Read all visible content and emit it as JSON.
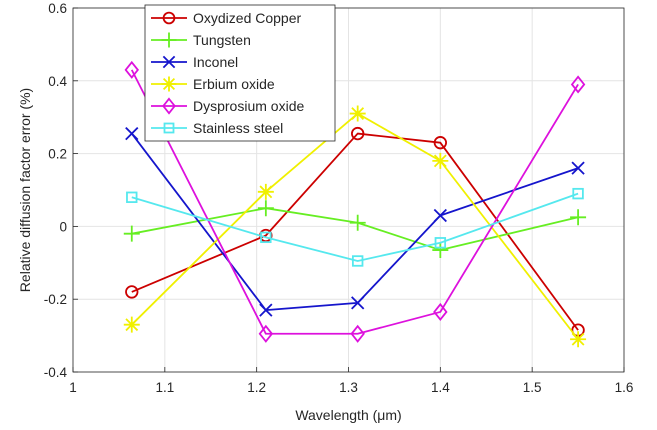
{
  "chart_data": {
    "type": "line",
    "title": "",
    "xlabel": "Wavelength (μm)",
    "ylabel": "Relative diffusion factor error (%)",
    "xlim": [
      1,
      1.6
    ],
    "ylim": [
      -0.4,
      0.6
    ],
    "xticks": [
      1,
      1.1,
      1.2,
      1.3,
      1.4,
      1.5,
      1.6
    ],
    "yticks": [
      -0.4,
      -0.2,
      0,
      0.2,
      0.4,
      0.6
    ],
    "xtick_labels": [
      "1",
      "1.1",
      "1.2",
      "1.3",
      "1.4",
      "1.5",
      "1.6"
    ],
    "ytick_labels": [
      "-0.4",
      "-0.2",
      "0",
      "0.2",
      "0.4",
      "0.6"
    ],
    "grid": true,
    "legend_position": "top-left",
    "x": [
      1.064,
      1.21,
      1.31,
      1.4,
      1.55
    ],
    "series": [
      {
        "name": "Oxydized Copper",
        "color": "#cc0000",
        "marker": "circle",
        "values": [
          -0.18,
          -0.025,
          0.255,
          0.23,
          -0.285
        ]
      },
      {
        "name": "Tungsten",
        "color": "#66ee22",
        "marker": "plus",
        "values": [
          -0.02,
          0.05,
          0.01,
          -0.065,
          0.025
        ]
      },
      {
        "name": "Inconel",
        "color": "#1515cc",
        "marker": "x",
        "values": [
          0.255,
          -0.23,
          -0.21,
          0.03,
          0.16
        ]
      },
      {
        "name": "Erbium oxide",
        "color": "#f0f000",
        "marker": "asterisk",
        "values": [
          -0.27,
          0.095,
          0.31,
          0.18,
          -0.31
        ]
      },
      {
        "name": "Dysprosium oxide",
        "color": "#dd11dd",
        "marker": "diamond",
        "values": [
          0.43,
          -0.295,
          -0.295,
          -0.235,
          0.39
        ]
      },
      {
        "name": "Stainless steel",
        "color": "#55e8ee",
        "marker": "square",
        "values": [
          0.08,
          -0.03,
          -0.095,
          -0.045,
          0.09
        ]
      }
    ]
  }
}
